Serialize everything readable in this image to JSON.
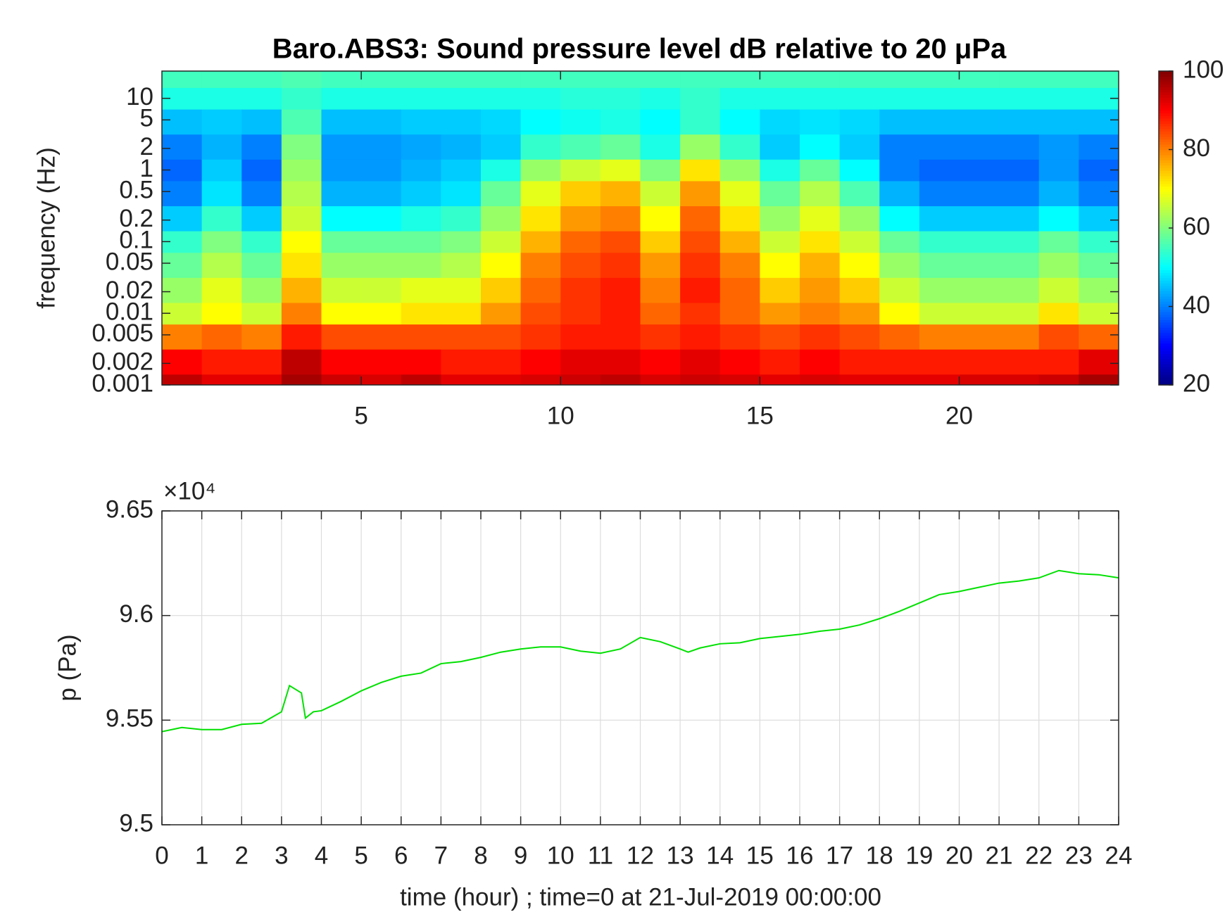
{
  "chart_data": [
    {
      "type": "heatmap",
      "title": "Baro.ABS3: Sound pressure level dB relative to 20 μPa",
      "y_label": "frequency (Hz)",
      "x": [
        0.5,
        1.5,
        2.5,
        3.5,
        4.5,
        5.5,
        6.5,
        7.5,
        8.5,
        9.5,
        10.5,
        11.5,
        12.5,
        13.5,
        14.5,
        15.5,
        16.5,
        17.5,
        18.5,
        19.5,
        20.5,
        21.5,
        22.5,
        23.5
      ],
      "y": [
        0.001,
        0.002,
        0.005,
        0.01,
        0.02,
        0.05,
        0.1,
        0.2,
        0.5,
        1,
        2,
        5,
        10,
        20
      ],
      "values": [
        [
          95,
          90,
          80,
          66,
          62,
          58,
          54,
          46,
          40,
          38,
          40,
          45,
          52,
          55
        ],
        [
          92,
          88,
          82,
          70,
          68,
          64,
          60,
          54,
          48,
          46,
          44,
          46,
          52,
          55
        ],
        [
          92,
          88,
          80,
          66,
          62,
          58,
          54,
          46,
          40,
          38,
          40,
          45,
          52,
          55
        ],
        [
          97,
          95,
          88,
          80,
          76,
          72,
          70,
          66,
          64,
          62,
          60,
          56,
          54,
          56
        ],
        [
          94,
          90,
          84,
          70,
          66,
          62,
          58,
          50,
          44,
          42,
          42,
          45,
          52,
          55
        ],
        [
          93,
          90,
          84,
          70,
          66,
          62,
          58,
          50,
          44,
          42,
          42,
          45,
          52,
          55
        ],
        [
          95,
          90,
          84,
          72,
          68,
          62,
          58,
          52,
          46,
          44,
          43,
          46,
          52,
          55
        ],
        [
          92,
          88,
          84,
          72,
          68,
          64,
          60,
          54,
          48,
          46,
          44,
          46,
          52,
          55
        ],
        [
          92,
          88,
          84,
          78,
          74,
          70,
          66,
          62,
          58,
          52,
          46,
          47,
          52,
          55
        ],
        [
          93,
          90,
          86,
          84,
          82,
          80,
          76,
          72,
          68,
          62,
          54,
          50,
          52,
          55
        ],
        [
          94,
          92,
          88,
          86,
          86,
          84,
          82,
          78,
          74,
          66,
          56,
          51,
          53,
          55
        ],
        [
          95,
          92,
          88,
          88,
          88,
          86,
          84,
          80,
          76,
          68,
          58,
          52,
          53,
          55
        ],
        [
          93,
          90,
          86,
          82,
          80,
          78,
          74,
          70,
          66,
          60,
          52,
          50,
          52,
          55
        ],
        [
          94,
          92,
          88,
          86,
          88,
          86,
          84,
          82,
          78,
          72,
          62,
          54,
          54,
          55
        ],
        [
          93,
          90,
          86,
          82,
          82,
          80,
          76,
          72,
          68,
          62,
          54,
          50,
          52,
          55
        ],
        [
          92,
          88,
          84,
          78,
          74,
          70,
          66,
          62,
          58,
          52,
          46,
          47,
          52,
          55
        ],
        [
          93,
          90,
          86,
          80,
          78,
          76,
          72,
          68,
          64,
          58,
          50,
          48,
          52,
          55
        ],
        [
          92,
          88,
          84,
          78,
          74,
          70,
          66,
          62,
          56,
          50,
          46,
          47,
          52,
          55
        ],
        [
          92,
          88,
          82,
          70,
          66,
          62,
          58,
          50,
          44,
          40,
          40,
          45,
          52,
          55
        ],
        [
          92,
          88,
          80,
          66,
          62,
          58,
          54,
          46,
          40,
          38,
          40,
          45,
          52,
          55
        ],
        [
          93,
          88,
          80,
          66,
          62,
          58,
          54,
          46,
          40,
          38,
          40,
          45,
          52,
          55
        ],
        [
          93,
          88,
          80,
          66,
          62,
          58,
          54,
          46,
          40,
          38,
          40,
          45,
          52,
          55
        ],
        [
          94,
          88,
          84,
          72,
          66,
          62,
          58,
          50,
          44,
          42,
          42,
          45,
          52,
          55
        ],
        [
          97,
          92,
          82,
          66,
          62,
          58,
          54,
          46,
          40,
          38,
          40,
          45,
          52,
          55
        ]
      ],
      "xlim": [
        0,
        24
      ],
      "xticks": [
        5,
        10,
        15,
        20
      ],
      "ylim": [
        0.001,
        24
      ],
      "yscale": "log",
      "yticks": [
        0.001,
        0.002,
        0.005,
        0.01,
        0.02,
        0.05,
        0.1,
        0.2,
        0.5,
        1,
        2,
        5,
        10
      ],
      "colormap": "jet",
      "clim": [
        20,
        100
      ],
      "cticks": [
        20,
        40,
        60,
        80,
        100
      ]
    },
    {
      "type": "line",
      "x_label": "time (hour) ; time=0 at 21-Jul-2019 00:00:00",
      "y_label": "p (Pa)",
      "y_exponent_label": "×10⁴",
      "x": [
        0,
        0.5,
        1,
        1.5,
        2,
        2.5,
        3,
        3.2,
        3.5,
        3.6,
        3.8,
        4,
        4.5,
        5,
        5.5,
        6,
        6.5,
        7,
        7.5,
        8,
        8.5,
        9,
        9.5,
        10,
        10.5,
        11,
        11.5,
        12,
        12.5,
        13,
        13.2,
        13.5,
        14,
        14.5,
        15,
        15.5,
        16,
        16.5,
        17,
        17.5,
        18,
        18.5,
        19,
        19.5,
        20,
        20.5,
        21,
        21.5,
        22,
        22.5,
        23,
        23.5,
        24
      ],
      "series": [
        {
          "color": "#00e000",
          "values": [
            95445,
            95465,
            95455,
            95455,
            95480,
            95485,
            95540,
            95665,
            95630,
            95510,
            95540,
            95545,
            95590,
            95640,
            95680,
            95710,
            95725,
            95770,
            95780,
            95800,
            95825,
            95840,
            95850,
            95850,
            95830,
            95820,
            95840,
            95895,
            95875,
            95840,
            95825,
            95845,
            95865,
            95870,
            95890,
            95900,
            95910,
            95925,
            95935,
            95955,
            95985,
            96020,
            96060,
            96100,
            96115,
            96135,
            96155,
            96165,
            96180,
            96215,
            96200,
            96195,
            96180
          ]
        }
      ],
      "xlim": [
        0,
        24
      ],
      "xticks": [
        0,
        1,
        2,
        3,
        4,
        5,
        6,
        7,
        8,
        9,
        10,
        11,
        12,
        13,
        14,
        15,
        16,
        17,
        18,
        19,
        20,
        21,
        22,
        23,
        24
      ],
      "ylim": [
        95000,
        96500
      ],
      "yticks": [
        {
          "value": 95000,
          "label": "9.5"
        },
        {
          "value": 95500,
          "label": "9.55"
        },
        {
          "value": 96000,
          "label": "9.6"
        },
        {
          "value": 96500,
          "label": "9.65"
        }
      ],
      "grid": true
    }
  ]
}
